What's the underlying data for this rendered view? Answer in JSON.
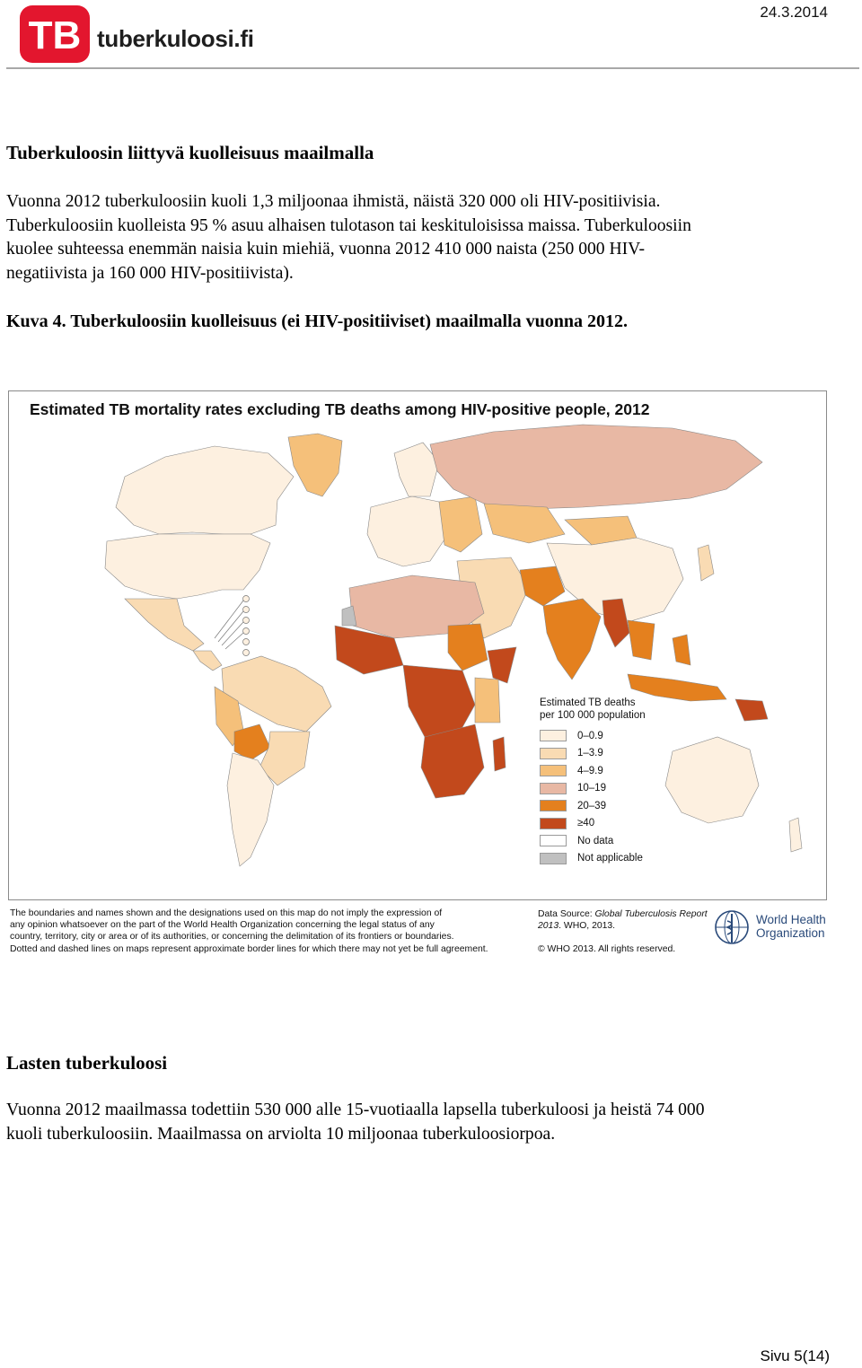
{
  "header": {
    "logo_text": "TB",
    "brand": "tuberkuloosi.fi",
    "date": "24.3.2014"
  },
  "section1": {
    "title": "Tuberkuloosin liittyvä kuolleisuus maailmalla",
    "lines": [
      "Vuonna 2012 tuberkuloosiin kuoli 1,3 miljoonaa ihmistä, näistä 320 000 oli HIV-positiivisia.",
      "Tuberkuloosiin kuolleista 95 % asuu alhaisen tulotason tai keskituloisissa maissa. Tuberkuloosiin",
      "kuolee suhteessa enemmän naisia kuin miehiä, vuonna 2012 410 000 naista (250 000 HIV-",
      "negatiivista ja 160 000 HIV-positiivista)."
    ]
  },
  "figure": {
    "caption": "Kuva 4. Tuberkuloosiin kuolleisuus (ei HIV-positiiviset) maailmalla vuonna 2012.",
    "map_title": "Estimated TB mortality rates excluding TB deaths among HIV-positive people, 2012",
    "legend": {
      "title": "Estimated TB deaths per 100 000 population",
      "items": [
        {
          "label": "0–0.9",
          "color": "#fdf0e0"
        },
        {
          "label": "1–3.9",
          "color": "#f9dbb3"
        },
        {
          "label": "4–9.9",
          "color": "#f5c07a"
        },
        {
          "label": "10–19",
          "color": "#e8b8a4"
        },
        {
          "label": "20–39",
          "color": "#e4801e"
        },
        {
          "label": "≥40",
          "color": "#c2491c"
        },
        {
          "label": "No data",
          "color": "#ffffff"
        },
        {
          "label": "Not applicable",
          "color": "#c0c0c0"
        }
      ]
    },
    "disclaimer_lines": [
      "The boundaries and names shown and the designations used on this map do not imply the expression of",
      "any opinion whatsoever on the part of the World Health Organization concerning the legal status of any",
      "country, territory, city or area or of its authorities, or concerning the delimitation of its frontiers or boundaries.",
      "Dotted and dashed lines on maps represent approximate border lines for which there may not yet be full agreement."
    ],
    "source_label": "Data Source: ",
    "source_title": "Global Tuberculosis Report 2013",
    "source_rest": ". WHO, 2013.",
    "copyright": "© WHO 2013. All rights reserved.",
    "who_name": "World Health Organization"
  },
  "section2": {
    "title": "Lasten tuberkuloosi",
    "lines": [
      "Vuonna 2012 maailmassa todettiin 530 000 alle 15-vuotiaalla lapsella tuberkuloosi ja heistä 74 000",
      "kuoli tuberkuloosiin. Maailmassa on arviolta 10 miljoonaa tuberkuloosiorpoa."
    ]
  },
  "footer": {
    "page_number": "Sivu 5(14)"
  }
}
